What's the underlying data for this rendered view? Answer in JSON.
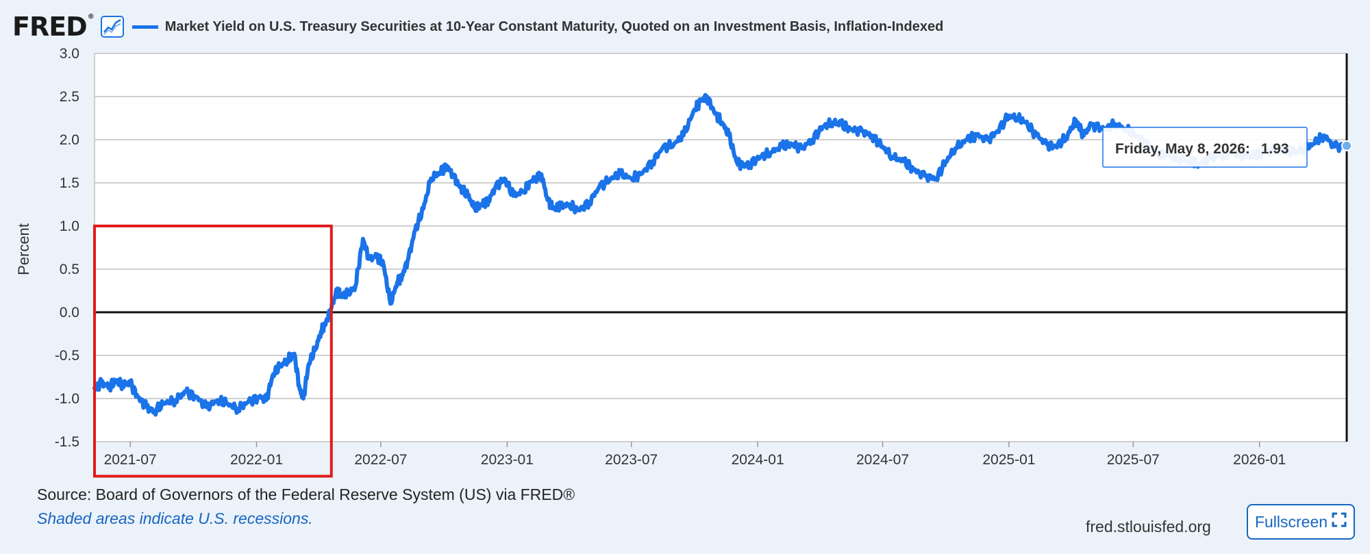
{
  "header": {
    "logo_text": "FRED",
    "logo_reg": "®",
    "title": "Market Yield on U.S. Treasury Securities at 10-Year Constant Maturity, Quoted on an Investment Basis, Inflation-Indexed"
  },
  "tooltip": {
    "date": "Friday, May 8, 2026:",
    "value": "1.93"
  },
  "footer": {
    "source": "Source: Board of Governors of the Federal Reserve System (US) via FRED®",
    "note": "Shaded areas indicate U.S. recessions.",
    "site": "fred.stlouisfed.org",
    "fullscreen_label": "Fullscreen"
  },
  "colors": {
    "series": "#1a73e8",
    "highlight_box": "#e01b1b",
    "background": "#ecf2fa"
  },
  "icons": {
    "logo": "fred-graph-icon",
    "fullscreen": "expand-icon"
  },
  "chart_data": {
    "type": "line",
    "ylabel": "Percent",
    "ylim": [
      -1.5,
      3.0
    ],
    "yticks": [
      "3.0",
      "2.5",
      "2.0",
      "1.5",
      "1.0",
      "0.5",
      "0.0",
      "-0.5",
      "-1.0",
      "-1.5"
    ],
    "xticks": [
      "2021-07",
      "2022-01",
      "2022-07",
      "2023-01",
      "2023-07",
      "2024-01",
      "2024-07",
      "2025-01",
      "2025-07",
      "2026-01"
    ],
    "xlim": [
      "2021-05-10",
      "2026-05-08"
    ],
    "grid": true,
    "highlight": {
      "x": [
        "2021-05-10",
        "2022-04-20"
      ],
      "y": [
        -1.9,
        1.0
      ]
    },
    "series": [
      {
        "x": [
          "2021-05-10",
          "2021-05-20",
          "2021-06-01",
          "2021-06-10",
          "2021-06-20",
          "2021-07-01",
          "2021-07-12",
          "2021-07-25",
          "2021-08-05",
          "2021-08-20",
          "2021-09-05",
          "2021-09-20",
          "2021-10-05",
          "2021-10-20",
          "2021-11-05",
          "2021-11-20",
          "2021-12-05",
          "2021-12-20",
          "2022-01-05",
          "2022-01-15",
          "2022-01-25",
          "2022-02-05",
          "2022-02-15",
          "2022-02-25",
          "2022-03-05",
          "2022-03-10",
          "2022-03-18",
          "2022-03-28",
          "2022-04-05",
          "2022-04-12",
          "2022-04-20",
          "2022-04-28",
          "2022-05-05",
          "2022-05-15",
          "2022-05-25",
          "2022-06-05",
          "2022-06-14",
          "2022-06-25",
          "2022-07-05",
          "2022-07-15",
          "2022-07-25",
          "2022-08-01",
          "2022-08-10",
          "2022-08-20",
          "2022-09-01",
          "2022-09-12",
          "2022-09-25",
          "2022-10-05",
          "2022-10-15",
          "2022-10-24",
          "2022-11-05",
          "2022-11-15",
          "2022-11-25",
          "2022-12-05",
          "2022-12-15",
          "2022-12-28",
          "2023-01-10",
          "2023-01-25",
          "2023-02-05",
          "2023-02-20",
          "2023-03-01",
          "2023-03-10",
          "2023-03-20",
          "2023-04-01",
          "2023-04-15",
          "2023-05-01",
          "2023-05-15",
          "2023-06-01",
          "2023-06-15",
          "2023-07-01",
          "2023-07-15",
          "2023-08-01",
          "2023-08-15",
          "2023-09-01",
          "2023-09-15",
          "2023-10-01",
          "2023-10-10",
          "2023-10-19",
          "2023-10-31",
          "2023-11-10",
          "2023-11-20",
          "2023-12-01",
          "2023-12-10",
          "2023-12-20",
          "2024-01-05",
          "2024-01-20",
          "2024-02-05",
          "2024-02-20",
          "2024-03-05",
          "2024-03-20",
          "2024-04-05",
          "2024-04-20",
          "2024-05-01",
          "2024-05-15",
          "2024-06-01",
          "2024-06-15",
          "2024-07-01",
          "2024-07-15",
          "2024-08-01",
          "2024-08-15",
          "2024-09-01",
          "2024-09-17",
          "2024-10-01",
          "2024-10-15",
          "2024-11-01",
          "2024-11-15",
          "2024-12-01",
          "2024-12-15",
          "2025-01-01",
          "2025-01-13",
          "2025-01-25",
          "2025-02-10",
          "2025-02-25",
          "2025-03-10",
          "2025-03-25",
          "2025-04-05",
          "2025-04-10",
          "2025-04-20",
          "2025-05-01",
          "2025-05-20",
          "2025-06-05",
          "2025-06-20",
          "2025-07-05",
          "2025-07-20",
          "2025-08-05",
          "2025-08-20",
          "2025-09-05",
          "2025-09-20",
          "2025-10-05",
          "2025-10-20",
          "2025-11-05",
          "2025-11-20",
          "2025-12-05",
          "2025-12-20",
          "2026-01-05",
          "2026-01-20",
          "2026-02-05",
          "2026-02-20",
          "2026-03-05",
          "2026-03-20",
          "2026-04-05",
          "2026-04-20",
          "2026-05-08"
        ],
        "y": [
          -0.88,
          -0.82,
          -0.86,
          -0.8,
          -0.84,
          -0.82,
          -0.98,
          -1.1,
          -1.15,
          -1.05,
          -1.02,
          -0.92,
          -0.98,
          -1.1,
          -1.02,
          -1.06,
          -1.12,
          -1.04,
          -0.98,
          -1.02,
          -0.72,
          -0.62,
          -0.55,
          -0.48,
          -0.9,
          -1.0,
          -0.6,
          -0.42,
          -0.22,
          -0.12,
          0.05,
          0.25,
          0.18,
          0.22,
          0.3,
          0.85,
          0.62,
          0.65,
          0.55,
          0.1,
          0.35,
          0.42,
          0.62,
          0.95,
          1.2,
          1.55,
          1.62,
          1.7,
          1.58,
          1.45,
          1.35,
          1.2,
          1.25,
          1.3,
          1.45,
          1.55,
          1.35,
          1.4,
          1.52,
          1.6,
          1.3,
          1.2,
          1.22,
          1.25,
          1.18,
          1.28,
          1.45,
          1.55,
          1.6,
          1.55,
          1.6,
          1.75,
          1.9,
          1.95,
          2.05,
          2.35,
          2.45,
          2.5,
          2.3,
          2.2,
          2.05,
          1.75,
          1.7,
          1.72,
          1.8,
          1.85,
          1.92,
          1.95,
          1.9,
          2.0,
          2.15,
          2.2,
          2.18,
          2.12,
          2.1,
          2.05,
          1.92,
          1.8,
          1.75,
          1.65,
          1.58,
          1.55,
          1.75,
          1.9,
          2.0,
          2.05,
          2.0,
          2.1,
          2.28,
          2.25,
          2.2,
          2.05,
          1.95,
          1.92,
          2.02,
          2.18,
          2.2,
          2.05,
          2.18,
          2.12,
          2.18,
          2.12,
          2.05,
          1.95,
          1.85,
          1.82,
          1.78,
          1.75,
          1.72,
          1.78,
          1.82,
          1.85,
          1.82,
          1.8,
          1.85,
          1.88,
          1.9,
          1.85,
          1.88,
          1.95,
          2.05,
          1.92,
          1.93
        ]
      }
    ]
  }
}
